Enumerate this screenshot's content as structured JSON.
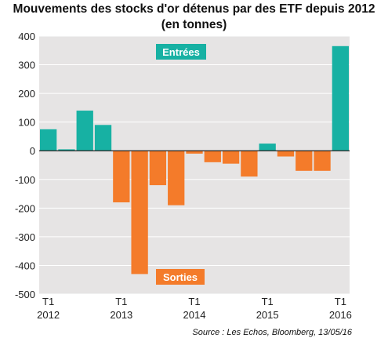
{
  "chart_data": {
    "type": "bar",
    "title_line1": "Mouvements des stocks d'or détenus par des ETF depuis 2012",
    "title_line2": "(en tonnes)",
    "source": "Source : Les Echos, Bloomberg, 13/05/16",
    "ylim": [
      -500,
      400
    ],
    "yticks": [
      400,
      300,
      200,
      100,
      0,
      -100,
      -200,
      -300,
      -400,
      -500
    ],
    "ytick_labels": [
      "400",
      "300",
      "200",
      "100",
      "0",
      "-100",
      "-200",
      "-300",
      "-400",
      "-500"
    ],
    "x_labels": [
      {
        "index": 0,
        "line1": "T1",
        "line2": "2012"
      },
      {
        "index": 4,
        "line1": "T1",
        "line2": "2013"
      },
      {
        "index": 8,
        "line1": "T1",
        "line2": "2014"
      },
      {
        "index": 12,
        "line1": "T1",
        "line2": "2015"
      },
      {
        "index": 16,
        "line1": "T1",
        "line2": "2016"
      }
    ],
    "values": [
      75,
      5,
      140,
      90,
      -180,
      -430,
      -120,
      -190,
      -10,
      -40,
      -45,
      -90,
      25,
      -20,
      -70,
      -70,
      365
    ],
    "legend": {
      "positive": "Entrées",
      "negative": "Sorties"
    },
    "colors": {
      "positive": "#17b1a3",
      "negative": "#f47b2a",
      "plot_bg": "#e6e4e4",
      "grid": "#ffffff",
      "zero_line": "#222222"
    },
    "grid": true
  }
}
